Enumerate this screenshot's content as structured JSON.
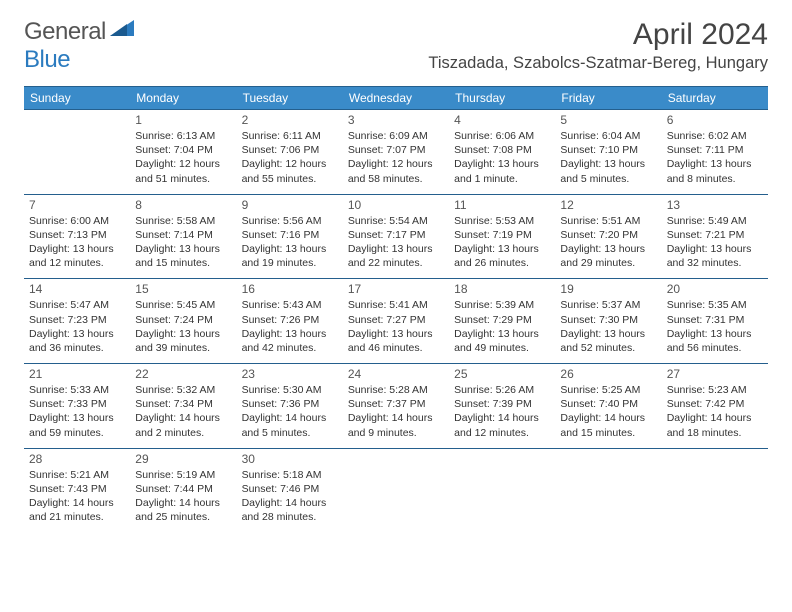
{
  "logo": {
    "text1": "General",
    "text2": "Blue"
  },
  "title": "April 2024",
  "location": "Tiszadada, Szabolcs-Szatmar-Bereg, Hungary",
  "dayNames": [
    "Sunday",
    "Monday",
    "Tuesday",
    "Wednesday",
    "Thursday",
    "Friday",
    "Saturday"
  ],
  "colors": {
    "header_bg": "#3a8bc9",
    "border": "#245f8d",
    "logo_blue": "#2b7bbf"
  },
  "weeks": [
    [
      {
        "n": "",
        "sr": "",
        "ss": "",
        "dl": ""
      },
      {
        "n": "1",
        "sr": "Sunrise: 6:13 AM",
        "ss": "Sunset: 7:04 PM",
        "dl": "Daylight: 12 hours and 51 minutes."
      },
      {
        "n": "2",
        "sr": "Sunrise: 6:11 AM",
        "ss": "Sunset: 7:06 PM",
        "dl": "Daylight: 12 hours and 55 minutes."
      },
      {
        "n": "3",
        "sr": "Sunrise: 6:09 AM",
        "ss": "Sunset: 7:07 PM",
        "dl": "Daylight: 12 hours and 58 minutes."
      },
      {
        "n": "4",
        "sr": "Sunrise: 6:06 AM",
        "ss": "Sunset: 7:08 PM",
        "dl": "Daylight: 13 hours and 1 minute."
      },
      {
        "n": "5",
        "sr": "Sunrise: 6:04 AM",
        "ss": "Sunset: 7:10 PM",
        "dl": "Daylight: 13 hours and 5 minutes."
      },
      {
        "n": "6",
        "sr": "Sunrise: 6:02 AM",
        "ss": "Sunset: 7:11 PM",
        "dl": "Daylight: 13 hours and 8 minutes."
      }
    ],
    [
      {
        "n": "7",
        "sr": "Sunrise: 6:00 AM",
        "ss": "Sunset: 7:13 PM",
        "dl": "Daylight: 13 hours and 12 minutes."
      },
      {
        "n": "8",
        "sr": "Sunrise: 5:58 AM",
        "ss": "Sunset: 7:14 PM",
        "dl": "Daylight: 13 hours and 15 minutes."
      },
      {
        "n": "9",
        "sr": "Sunrise: 5:56 AM",
        "ss": "Sunset: 7:16 PM",
        "dl": "Daylight: 13 hours and 19 minutes."
      },
      {
        "n": "10",
        "sr": "Sunrise: 5:54 AM",
        "ss": "Sunset: 7:17 PM",
        "dl": "Daylight: 13 hours and 22 minutes."
      },
      {
        "n": "11",
        "sr": "Sunrise: 5:53 AM",
        "ss": "Sunset: 7:19 PM",
        "dl": "Daylight: 13 hours and 26 minutes."
      },
      {
        "n": "12",
        "sr": "Sunrise: 5:51 AM",
        "ss": "Sunset: 7:20 PM",
        "dl": "Daylight: 13 hours and 29 minutes."
      },
      {
        "n": "13",
        "sr": "Sunrise: 5:49 AM",
        "ss": "Sunset: 7:21 PM",
        "dl": "Daylight: 13 hours and 32 minutes."
      }
    ],
    [
      {
        "n": "14",
        "sr": "Sunrise: 5:47 AM",
        "ss": "Sunset: 7:23 PM",
        "dl": "Daylight: 13 hours and 36 minutes."
      },
      {
        "n": "15",
        "sr": "Sunrise: 5:45 AM",
        "ss": "Sunset: 7:24 PM",
        "dl": "Daylight: 13 hours and 39 minutes."
      },
      {
        "n": "16",
        "sr": "Sunrise: 5:43 AM",
        "ss": "Sunset: 7:26 PM",
        "dl": "Daylight: 13 hours and 42 minutes."
      },
      {
        "n": "17",
        "sr": "Sunrise: 5:41 AM",
        "ss": "Sunset: 7:27 PM",
        "dl": "Daylight: 13 hours and 46 minutes."
      },
      {
        "n": "18",
        "sr": "Sunrise: 5:39 AM",
        "ss": "Sunset: 7:29 PM",
        "dl": "Daylight: 13 hours and 49 minutes."
      },
      {
        "n": "19",
        "sr": "Sunrise: 5:37 AM",
        "ss": "Sunset: 7:30 PM",
        "dl": "Daylight: 13 hours and 52 minutes."
      },
      {
        "n": "20",
        "sr": "Sunrise: 5:35 AM",
        "ss": "Sunset: 7:31 PM",
        "dl": "Daylight: 13 hours and 56 minutes."
      }
    ],
    [
      {
        "n": "21",
        "sr": "Sunrise: 5:33 AM",
        "ss": "Sunset: 7:33 PM",
        "dl": "Daylight: 13 hours and 59 minutes."
      },
      {
        "n": "22",
        "sr": "Sunrise: 5:32 AM",
        "ss": "Sunset: 7:34 PM",
        "dl": "Daylight: 14 hours and 2 minutes."
      },
      {
        "n": "23",
        "sr": "Sunrise: 5:30 AM",
        "ss": "Sunset: 7:36 PM",
        "dl": "Daylight: 14 hours and 5 minutes."
      },
      {
        "n": "24",
        "sr": "Sunrise: 5:28 AM",
        "ss": "Sunset: 7:37 PM",
        "dl": "Daylight: 14 hours and 9 minutes."
      },
      {
        "n": "25",
        "sr": "Sunrise: 5:26 AM",
        "ss": "Sunset: 7:39 PM",
        "dl": "Daylight: 14 hours and 12 minutes."
      },
      {
        "n": "26",
        "sr": "Sunrise: 5:25 AM",
        "ss": "Sunset: 7:40 PM",
        "dl": "Daylight: 14 hours and 15 minutes."
      },
      {
        "n": "27",
        "sr": "Sunrise: 5:23 AM",
        "ss": "Sunset: 7:42 PM",
        "dl": "Daylight: 14 hours and 18 minutes."
      }
    ],
    [
      {
        "n": "28",
        "sr": "Sunrise: 5:21 AM",
        "ss": "Sunset: 7:43 PM",
        "dl": "Daylight: 14 hours and 21 minutes."
      },
      {
        "n": "29",
        "sr": "Sunrise: 5:19 AM",
        "ss": "Sunset: 7:44 PM",
        "dl": "Daylight: 14 hours and 25 minutes."
      },
      {
        "n": "30",
        "sr": "Sunrise: 5:18 AM",
        "ss": "Sunset: 7:46 PM",
        "dl": "Daylight: 14 hours and 28 minutes."
      },
      {
        "n": "",
        "sr": "",
        "ss": "",
        "dl": ""
      },
      {
        "n": "",
        "sr": "",
        "ss": "",
        "dl": ""
      },
      {
        "n": "",
        "sr": "",
        "ss": "",
        "dl": ""
      },
      {
        "n": "",
        "sr": "",
        "ss": "",
        "dl": ""
      }
    ]
  ]
}
